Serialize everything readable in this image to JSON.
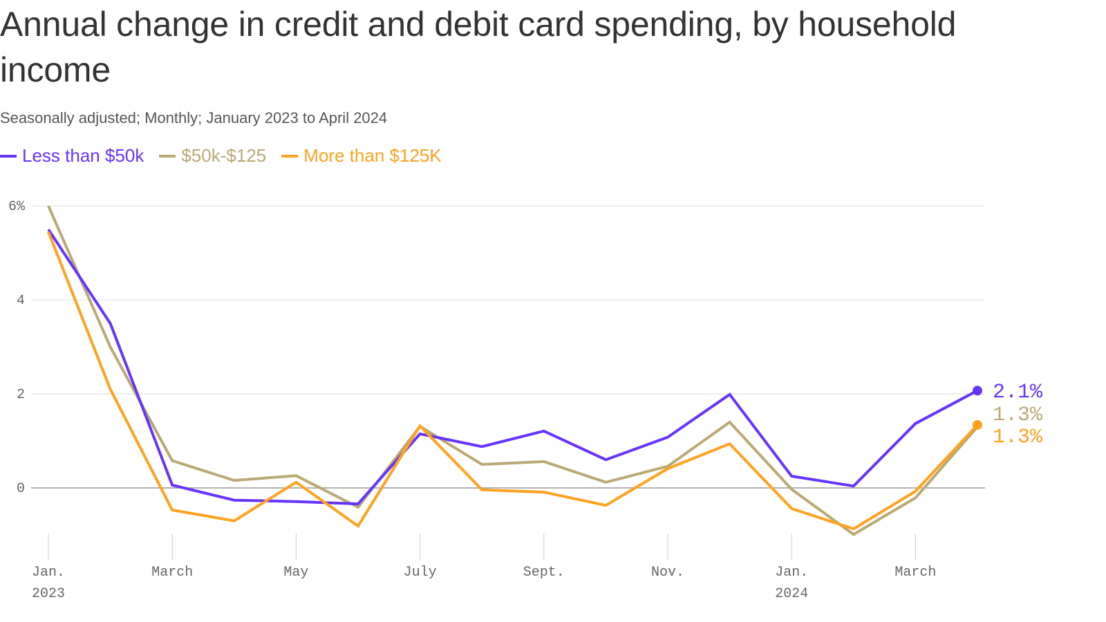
{
  "chart_data": {
    "type": "line",
    "title": "Annual change in credit and debit card spending, by household income",
    "subtitle": "Seasonally adjusted; Monthly; January 2023 to April 2024",
    "x": [
      "2023-01",
      "2023-02",
      "2023-03",
      "2023-04",
      "2023-05",
      "2023-06",
      "2023-07",
      "2023-08",
      "2023-09",
      "2023-10",
      "2023-11",
      "2023-12",
      "2024-01",
      "2024-02",
      "2024-03",
      "2024-04"
    ],
    "x_tick_labels": [
      {
        "index": 0,
        "line1": "Jan.",
        "line2": "2023"
      },
      {
        "index": 2,
        "line1": "March",
        "line2": ""
      },
      {
        "index": 4,
        "line1": "May",
        "line2": ""
      },
      {
        "index": 6,
        "line1": "July",
        "line2": ""
      },
      {
        "index": 8,
        "line1": "Sept.",
        "line2": ""
      },
      {
        "index": 10,
        "line1": "Nov.",
        "line2": ""
      },
      {
        "index": 12,
        "line1": "Jan.",
        "line2": "2024"
      },
      {
        "index": 14,
        "line1": "March",
        "line2": ""
      }
    ],
    "y_ticks": [
      {
        "value": 6,
        "label": "6%"
      },
      {
        "value": 4,
        "label": "4"
      },
      {
        "value": 2,
        "label": "2"
      },
      {
        "value": 0,
        "label": "0"
      }
    ],
    "ylim": [
      -1.0,
      6.0
    ],
    "xlabel": "",
    "ylabel": "",
    "series": [
      {
        "name": "Less than $50k",
        "color": "#6633ff",
        "values": [
          5.5,
          3.5,
          0.06,
          -0.26,
          -0.29,
          -0.34,
          1.15,
          0.88,
          1.21,
          0.6,
          1.08,
          1.99,
          0.25,
          0.04,
          1.37,
          2.07
        ],
        "end_label": "2.1%"
      },
      {
        "name": "$50k-$125",
        "color": "#baa974",
        "values": [
          6.0,
          3.0,
          0.58,
          0.16,
          0.26,
          -0.41,
          1.31,
          0.5,
          0.56,
          0.12,
          0.46,
          1.4,
          -0.03,
          -0.99,
          -0.21,
          1.3
        ],
        "end_label": "1.3%"
      },
      {
        "name": "More than $125K",
        "color": "#ffa21f",
        "values": [
          5.45,
          2.1,
          -0.47,
          -0.7,
          0.12,
          -0.81,
          1.32,
          -0.04,
          -0.09,
          -0.37,
          0.41,
          0.94,
          -0.44,
          -0.87,
          -0.07,
          1.34
        ],
        "end_label": "1.3%"
      }
    ],
    "grid": true,
    "legend_position": "top-left"
  }
}
